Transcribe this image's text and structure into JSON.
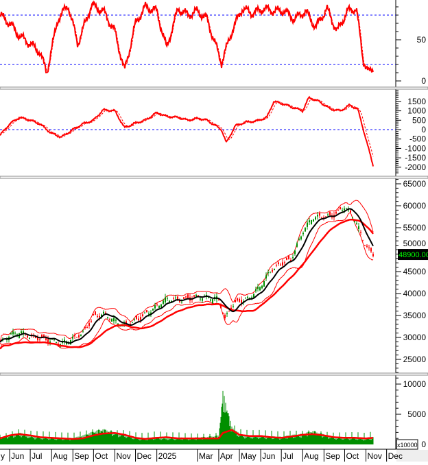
{
  "chart_data": [
    {
      "type": "line",
      "panel": "oscillator",
      "ylim": [
        0,
        100
      ],
      "yticks": [
        "0",
        "50"
      ],
      "reference_lines": [
        20,
        80
      ],
      "dates": [
        "2024-05-18",
        "2024-06-01",
        "2024-06-15",
        "2024-07-01",
        "2024-07-15",
        "2024-07-25",
        "2024-08-10",
        "2024-08-25",
        "2024-09-08",
        "2024-09-28",
        "2024-10-15",
        "2024-11-01",
        "2024-11-15",
        "2024-12-01",
        "2024-12-15",
        "2025-01-01",
        "2025-01-15",
        "2025-02-01",
        "2025-02-15",
        "2025-03-01",
        "2025-03-15",
        "2025-04-05",
        "2025-04-20",
        "2025-05-05",
        "2025-05-20",
        "2025-06-05",
        "2025-06-20",
        "2025-07-05",
        "2025-07-20",
        "2025-08-05",
        "2025-08-20",
        "2025-09-05",
        "2025-09-20",
        "2025-10-05",
        "2025-10-18",
        "2025-10-28",
        "2025-11-05",
        "2025-11-12"
      ],
      "values": [
        80,
        70,
        55,
        45,
        35,
        10,
        75,
        92,
        45,
        92,
        85,
        60,
        12,
        70,
        90,
        85,
        40,
        88,
        80,
        85,
        75,
        22,
        60,
        88,
        82,
        88,
        85,
        85,
        75,
        85,
        65,
        88,
        60,
        85,
        88,
        25,
        10,
        15
      ]
    },
    {
      "type": "line",
      "panel": "macd",
      "ylim": [
        -2300,
        2100
      ],
      "yticks": [
        "1500",
        "1000",
        "500",
        "0",
        "-500",
        "-1000",
        "-1500",
        "-2000"
      ],
      "reference_lines": [
        0
      ],
      "dates": [
        "2024-05-18",
        "2024-06-01",
        "2024-06-15",
        "2024-07-01",
        "2024-07-15",
        "2024-08-01",
        "2024-08-15",
        "2024-09-01",
        "2024-09-15",
        "2024-10-01",
        "2024-10-15",
        "2024-11-01",
        "2024-11-15",
        "2024-12-01",
        "2024-12-15",
        "2025-01-01",
        "2025-01-15",
        "2025-02-01",
        "2025-02-15",
        "2025-03-01",
        "2025-03-15",
        "2025-04-05",
        "2025-04-12",
        "2025-04-25",
        "2025-05-10",
        "2025-05-25",
        "2025-06-10",
        "2025-06-20",
        "2025-07-05",
        "2025-07-20",
        "2025-08-01",
        "2025-08-10",
        "2025-08-25",
        "2025-09-10",
        "2025-09-25",
        "2025-10-08",
        "2025-10-20",
        "2025-11-01",
        "2025-11-12"
      ],
      "values": [
        -300,
        300,
        650,
        500,
        300,
        -200,
        -400,
        0,
        300,
        500,
        1050,
        1000,
        100,
        350,
        500,
        900,
        700,
        650,
        500,
        600,
        500,
        0,
        -700,
        200,
        400,
        450,
        650,
        1500,
        1350,
        1150,
        1000,
        1700,
        1500,
        1100,
        1000,
        1300,
        1100,
        -500,
        -2000
      ]
    },
    {
      "type": "candlestick",
      "panel": "price",
      "ylim": [
        22000,
        66000
      ],
      "yticks": [
        "65000",
        "60000",
        "55000",
        "50000",
        "45000",
        "40000",
        "35000",
        "30000",
        "25000"
      ],
      "last_price_label": "48900.00",
      "overlays": [
        "bollinger-bands",
        "moving-average-black",
        "moving-average-red"
      ],
      "dates": [
        "2024-05-18",
        "2024-06-01",
        "2024-06-15",
        "2024-07-01",
        "2024-07-15",
        "2024-08-01",
        "2024-08-15",
        "2024-09-01",
        "2024-09-15",
        "2024-10-01",
        "2024-10-15",
        "2024-11-01",
        "2024-11-15",
        "2024-12-01",
        "2024-12-15",
        "2025-01-01",
        "2025-01-15",
        "2025-02-01",
        "2025-02-15",
        "2025-03-01",
        "2025-03-15",
        "2025-04-01",
        "2025-04-10",
        "2025-04-20",
        "2025-05-01",
        "2025-05-15",
        "2025-06-01",
        "2025-06-15",
        "2025-07-01",
        "2025-07-15",
        "2025-08-01",
        "2025-08-15",
        "2025-09-01",
        "2025-09-15",
        "2025-10-01",
        "2025-10-15",
        "2025-11-01",
        "2025-11-12"
      ],
      "close": [
        29000,
        30500,
        31000,
        30000,
        30000,
        29500,
        28500,
        29500,
        31000,
        35000,
        35500,
        33500,
        32500,
        34000,
        35500,
        37000,
        38500,
        38500,
        39000,
        39500,
        39000,
        38500,
        34000,
        37500,
        38500,
        39000,
        41500,
        45000,
        47000,
        48000,
        54000,
        57000,
        57500,
        58000,
        60000,
        57000,
        50500,
        48900
      ]
    },
    {
      "type": "bar",
      "panel": "volume",
      "unit_label": "x10000",
      "ylim": [
        0,
        11500
      ],
      "yticks": [
        "10000",
        "5000",
        "0"
      ],
      "dates": [
        "2024-05-18",
        "2024-06-01",
        "2024-06-15",
        "2024-07-01",
        "2024-07-15",
        "2024-08-01",
        "2024-08-15",
        "2024-09-01",
        "2024-09-15",
        "2024-10-01",
        "2024-10-15",
        "2024-11-01",
        "2024-11-15",
        "2024-12-01",
        "2024-12-15",
        "2025-01-01",
        "2025-01-15",
        "2025-02-01",
        "2025-02-15",
        "2025-03-01",
        "2025-03-15",
        "2025-04-01",
        "2025-04-07",
        "2025-04-20",
        "2025-05-01",
        "2025-05-15",
        "2025-06-01",
        "2025-06-15",
        "2025-07-01",
        "2025-07-15",
        "2025-08-01",
        "2025-08-15",
        "2025-09-01",
        "2025-09-15",
        "2025-10-01",
        "2025-10-15",
        "2025-11-01",
        "2025-11-12"
      ],
      "values": [
        1200,
        1600,
        2000,
        1500,
        1300,
        1200,
        1100,
        1100,
        1500,
        2200,
        2600,
        2000,
        1800,
        1200,
        1000,
        1300,
        1100,
        1200,
        1100,
        1200,
        1300,
        1500,
        9000,
        3000,
        1800,
        1500,
        1500,
        1400,
        1300,
        1600,
        1800,
        2300,
        1700,
        1300,
        1200,
        1200,
        1000,
        1300
      ],
      "ma_values": [
        1000,
        1500,
        1700,
        1500,
        1200,
        1100,
        1000,
        900,
        1000,
        1500,
        1800,
        1900,
        1600,
        1100,
        900,
        1100,
        1200,
        1000,
        1000,
        1000,
        1000,
        1000,
        1900,
        2400,
        1600,
        1400,
        1400,
        1200,
        1100,
        1300,
        1600,
        1700,
        1500,
        1200,
        1100,
        1100,
        1000,
        1100
      ]
    }
  ],
  "x_axis": {
    "labels": [
      {
        "text": "y",
        "date": "2024-05-17"
      },
      {
        "text": "Jun",
        "date": "2024-06-01"
      },
      {
        "text": "Jul",
        "date": "2024-07-01"
      },
      {
        "text": "Aug",
        "date": "2024-08-01"
      },
      {
        "text": "Sep",
        "date": "2024-09-01"
      },
      {
        "text": "Oct",
        "date": "2024-10-01"
      },
      {
        "text": "Nov",
        "date": "2024-11-01"
      },
      {
        "text": "Dec",
        "date": "2024-12-01"
      },
      {
        "text": "2025",
        "date": "2025-01-01"
      },
      {
        "text": "Mar",
        "date": "2025-03-01"
      },
      {
        "text": "Apr",
        "date": "2025-04-01"
      },
      {
        "text": "May",
        "date": "2025-05-01"
      },
      {
        "text": "Jun",
        "date": "2025-06-01"
      },
      {
        "text": "Jul",
        "date": "2025-07-01"
      },
      {
        "text": "Aug",
        "date": "2025-08-01"
      },
      {
        "text": "Sep",
        "date": "2025-09-01"
      },
      {
        "text": "Oct",
        "date": "2025-10-01"
      },
      {
        "text": "Nov",
        "date": "2025-11-01"
      },
      {
        "text": "Dec",
        "date": "2025-12-01"
      }
    ]
  },
  "colors": {
    "up": "#008f00",
    "down": "#ff0000",
    "line": "#ff0000",
    "ma_black": "#000000",
    "reference": "#0000ff",
    "last_price_bg": "#000000",
    "last_price_text": "#00ff00"
  }
}
